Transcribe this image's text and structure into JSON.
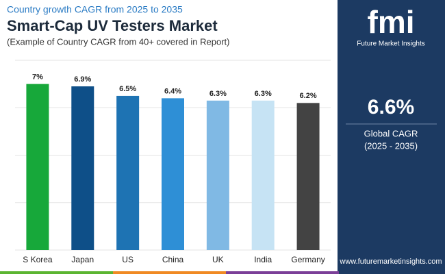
{
  "chart_data": {
    "type": "bar",
    "subtitle": "Country growth CAGR from 2025 to 2035",
    "title": "Smart-Cap UV Testers Market",
    "note": "(Example of Country CAGR from 40+ covered in Report)",
    "categories": [
      "S Korea",
      "Japan",
      "US",
      "China",
      "UK",
      "India",
      "Germany"
    ],
    "values": [
      7,
      6.9,
      6.5,
      6.4,
      6.3,
      6.3,
      6.2
    ],
    "value_labels": [
      "7%",
      "6.9%",
      "6.5%",
      "6.4%",
      "6.3%",
      "6.3%",
      "6.2%"
    ],
    "colors": [
      "#17a83a",
      "#0e4f88",
      "#1e73b3",
      "#2e8fd6",
      "#80b9e4",
      "#c6e3f4",
      "#434343"
    ],
    "ylim": [
      0,
      8
    ],
    "yticks": [
      0,
      2,
      4,
      6,
      8
    ],
    "grid": true
  },
  "summary": {
    "value": "6.6%",
    "label": "Global CAGR",
    "period": "(2025 - 2035)"
  },
  "brand": {
    "logo": "fmi",
    "name": "Future Market Insights",
    "website": "www.futuremarketinsights.com"
  }
}
